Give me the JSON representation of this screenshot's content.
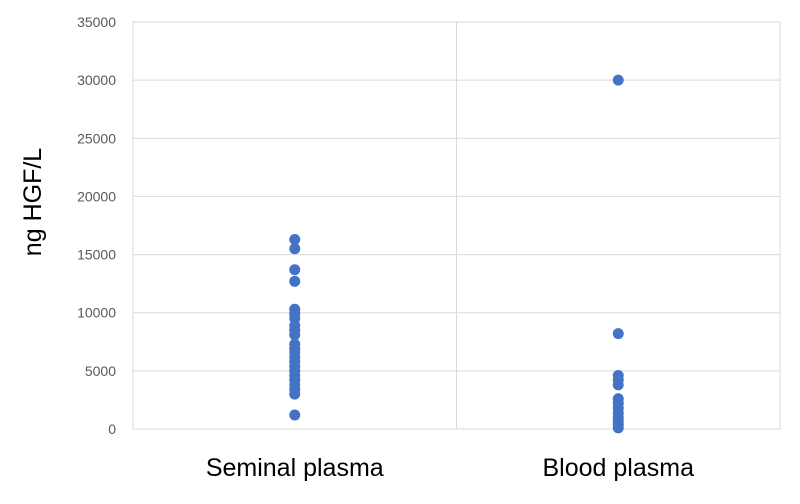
{
  "chart_data": {
    "type": "scatter",
    "title": "",
    "ylabel": "ng HGF/L",
    "xlabel": "",
    "categories": [
      "Seminal plasma",
      "Blood plasma"
    ],
    "ylim": [
      0,
      35000
    ],
    "yticks": [
      0,
      5000,
      10000,
      15000,
      20000,
      25000,
      30000,
      35000
    ],
    "grid": true,
    "legend": "none",
    "marker_color": "#4472c4",
    "series": [
      {
        "category": "Seminal plasma",
        "values": [
          16300,
          15500,
          13700,
          12700,
          10300,
          9900,
          9500,
          8900,
          8500,
          8100,
          7300,
          6900,
          6600,
          6200,
          5800,
          5400,
          5000,
          4600,
          4200,
          3800,
          3400,
          3000,
          1200
        ]
      },
      {
        "category": "Blood plasma",
        "values": [
          30000,
          8200,
          4600,
          4200,
          3800,
          2600,
          2200,
          1800,
          1400,
          1000,
          700,
          400,
          100
        ]
      }
    ]
  }
}
